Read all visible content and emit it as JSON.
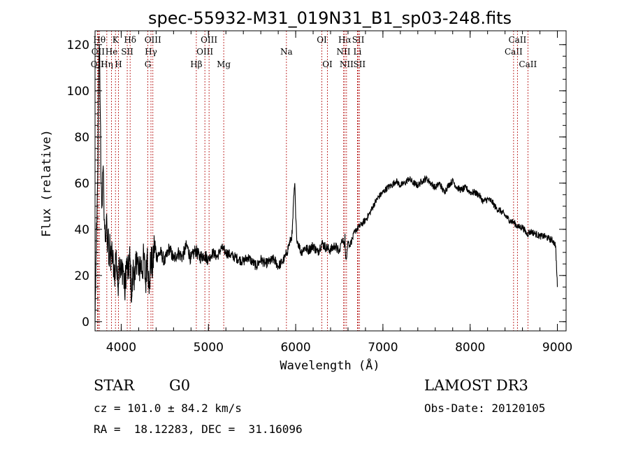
{
  "chart_data": {
    "type": "line",
    "title": "spec-55932-M31_019N31_B1_sp03-248.fits",
    "xlabel": "Wavelength (Å)",
    "ylabel": "Flux (relative)",
    "xlim": [
      3700,
      9100
    ],
    "ylim": [
      -4,
      126
    ],
    "x_ticks": [
      4000,
      5000,
      6000,
      7000,
      8000,
      9000
    ],
    "y_ticks": [
      0,
      20,
      40,
      60,
      80,
      100,
      120
    ],
    "series": [
      {
        "name": "flux",
        "x": [
          3700,
          3710,
          3720,
          3730,
          3740,
          3750,
          3760,
          3770,
          3780,
          3790,
          3800,
          3810,
          3820,
          3830,
          3840,
          3850,
          3860,
          3870,
          3880,
          3890,
          3900,
          3920,
          3940,
          3960,
          3980,
          4000,
          4020,
          4040,
          4060,
          4080,
          4100,
          4120,
          4140,
          4160,
          4180,
          4200,
          4220,
          4240,
          4260,
          4280,
          4300,
          4320,
          4340,
          4360,
          4380,
          4400,
          4450,
          4500,
          4550,
          4600,
          4650,
          4700,
          4750,
          4800,
          4850,
          4900,
          4950,
          5000,
          5050,
          5100,
          5150,
          5200,
          5250,
          5300,
          5350,
          5400,
          5450,
          5500,
          5550,
          5600,
          5650,
          5700,
          5750,
          5800,
          5850,
          5880,
          5900,
          5920,
          5940,
          5960,
          5980,
          5990,
          6000,
          6010,
          6020,
          6040,
          6060,
          6100,
          6150,
          6200,
          6250,
          6300,
          6350,
          6400,
          6450,
          6500,
          6520,
          6540,
          6560,
          6565,
          6570,
          6580,
          6600,
          6620,
          6650,
          6680,
          6700,
          6750,
          6800,
          6850,
          6900,
          6950,
          7000,
          7050,
          7100,
          7150,
          7200,
          7250,
          7300,
          7350,
          7400,
          7450,
          7500,
          7550,
          7600,
          7650,
          7700,
          7750,
          7800,
          7850,
          7900,
          7950,
          8000,
          8050,
          8100,
          8150,
          8200,
          8250,
          8300,
          8350,
          8400,
          8450,
          8500,
          8550,
          8600,
          8650,
          8700,
          8750,
          8800,
          8850,
          8900,
          8950,
          8980,
          9000
        ],
        "values": [
          0,
          25,
          40,
          60,
          100,
          120,
          90,
          60,
          50,
          65,
          55,
          40,
          35,
          45,
          30,
          40,
          25,
          38,
          22,
          32,
          28,
          18,
          30,
          15,
          28,
          20,
          25,
          12,
          26,
          20,
          28,
          10,
          24,
          18,
          30,
          20,
          26,
          22,
          28,
          16,
          32,
          12,
          28,
          22,
          34,
          28,
          30,
          26,
          32,
          27,
          30,
          28,
          33,
          27,
          31,
          28,
          29,
          27,
          30,
          28,
          32,
          30,
          29,
          28,
          27,
          26,
          28,
          26,
          24,
          27,
          25,
          26,
          27,
          24,
          26,
          28,
          30,
          33,
          35,
          38,
          55,
          60,
          45,
          38,
          35,
          33,
          30,
          32,
          31,
          33,
          30,
          34,
          32,
          31,
          33,
          30,
          34,
          36,
          32,
          38,
          30,
          27,
          35,
          33,
          36,
          39,
          40,
          42,
          44,
          47,
          51,
          54,
          56,
          58,
          59,
          61,
          59,
          60,
          62,
          60,
          59,
          61,
          62,
          60,
          58,
          60,
          56,
          59,
          61,
          58,
          57,
          58,
          56,
          56,
          55,
          52,
          53,
          52,
          49,
          48,
          46,
          44,
          43,
          41,
          41,
          38,
          39,
          38,
          37,
          37,
          36,
          35,
          33,
          15
        ]
      }
    ],
    "lines": [
      {
        "label": "OII",
        "x": 3727,
        "row": 2
      },
      {
        "label": "Hθ",
        "x": 3750,
        "row": 0
      },
      {
        "label": "OII",
        "x": 3735,
        "row": 1
      },
      {
        "label": "Hη",
        "x": 3835,
        "row": 2
      },
      {
        "label": "He",
        "x": 3889,
        "row": 1
      },
      {
        "label": "K",
        "x": 3934,
        "row": 0
      },
      {
        "label": "H",
        "x": 3968,
        "row": 2
      },
      {
        "label": "SII",
        "x": 4069,
        "row": 1
      },
      {
        "label": "Hδ",
        "x": 4102,
        "row": 0
      },
      {
        "label": "G",
        "x": 4305,
        "row": 2
      },
      {
        "label": "Hγ",
        "x": 4341,
        "row": 1
      },
      {
        "label": "OIII",
        "x": 4363,
        "row": 0
      },
      {
        "label": "Hβ",
        "x": 4861,
        "row": 2
      },
      {
        "label": "OIII",
        "x": 4959,
        "row": 1
      },
      {
        "label": "OIII",
        "x": 5007,
        "row": 0
      },
      {
        "label": "Mg",
        "x": 5175,
        "row": 2
      },
      {
        "label": "Na",
        "x": 5894,
        "row": 1
      },
      {
        "label": "OI",
        "x": 6300,
        "row": 0
      },
      {
        "label": "OI",
        "x": 6364,
        "row": 2
      },
      {
        "label": "NII",
        "x": 6548,
        "row": 1
      },
      {
        "label": "Hα",
        "x": 6563,
        "row": 0
      },
      {
        "label": "NII",
        "x": 6583,
        "row": 2
      },
      {
        "label": "Li",
        "x": 6708,
        "row": 1
      },
      {
        "label": "SII",
        "x": 6717,
        "row": 0
      },
      {
        "label": "SII",
        "x": 6731,
        "row": 2
      },
      {
        "label": "CaII",
        "x": 8498,
        "row": 1
      },
      {
        "label": "CaII",
        "x": 8542,
        "row": 0
      },
      {
        "label": "CaII",
        "x": 8662,
        "row": 2
      }
    ]
  },
  "info": {
    "class": "STAR",
    "subclass": "G0",
    "survey": "LAMOST DR3",
    "redshift": "cz = 101.0 ± 84.2 km/s",
    "obs_date": "Obs-Date: 20120105",
    "coords": "RA =  18.12283, DEC =  31.16096"
  }
}
